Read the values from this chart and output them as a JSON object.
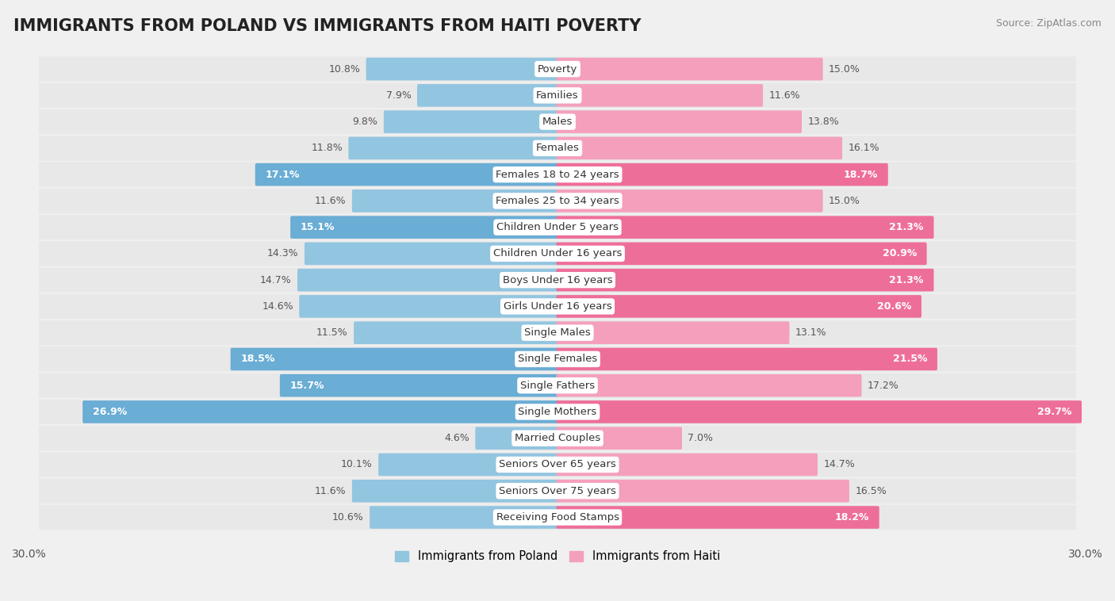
{
  "title": "IMMIGRANTS FROM POLAND VS IMMIGRANTS FROM HAITI POVERTY",
  "source": "Source: ZipAtlas.com",
  "categories": [
    "Poverty",
    "Families",
    "Males",
    "Females",
    "Females 18 to 24 years",
    "Females 25 to 34 years",
    "Children Under 5 years",
    "Children Under 16 years",
    "Boys Under 16 years",
    "Girls Under 16 years",
    "Single Males",
    "Single Females",
    "Single Fathers",
    "Single Mothers",
    "Married Couples",
    "Seniors Over 65 years",
    "Seniors Over 75 years",
    "Receiving Food Stamps"
  ],
  "poland_values": [
    10.8,
    7.9,
    9.8,
    11.8,
    17.1,
    11.6,
    15.1,
    14.3,
    14.7,
    14.6,
    11.5,
    18.5,
    15.7,
    26.9,
    4.6,
    10.1,
    11.6,
    10.6
  ],
  "haiti_values": [
    15.0,
    11.6,
    13.8,
    16.1,
    18.7,
    15.0,
    21.3,
    20.9,
    21.3,
    20.6,
    13.1,
    21.5,
    17.2,
    29.7,
    7.0,
    14.7,
    16.5,
    18.2
  ],
  "poland_color": "#92C5E0",
  "haiti_color": "#F4A0BC",
  "poland_highlight": "#6AADD5",
  "haiti_highlight": "#EE6E9A",
  "poland_label": "Immigrants from Poland",
  "haiti_label": "Immigrants from Haiti",
  "xlim": 30.0,
  "bar_height": 0.72,
  "background_color": "#f0f0f0",
  "row_bg_color": "#e8e8e8",
  "title_fontsize": 15,
  "label_fontsize": 9.5,
  "value_fontsize": 9.0
}
